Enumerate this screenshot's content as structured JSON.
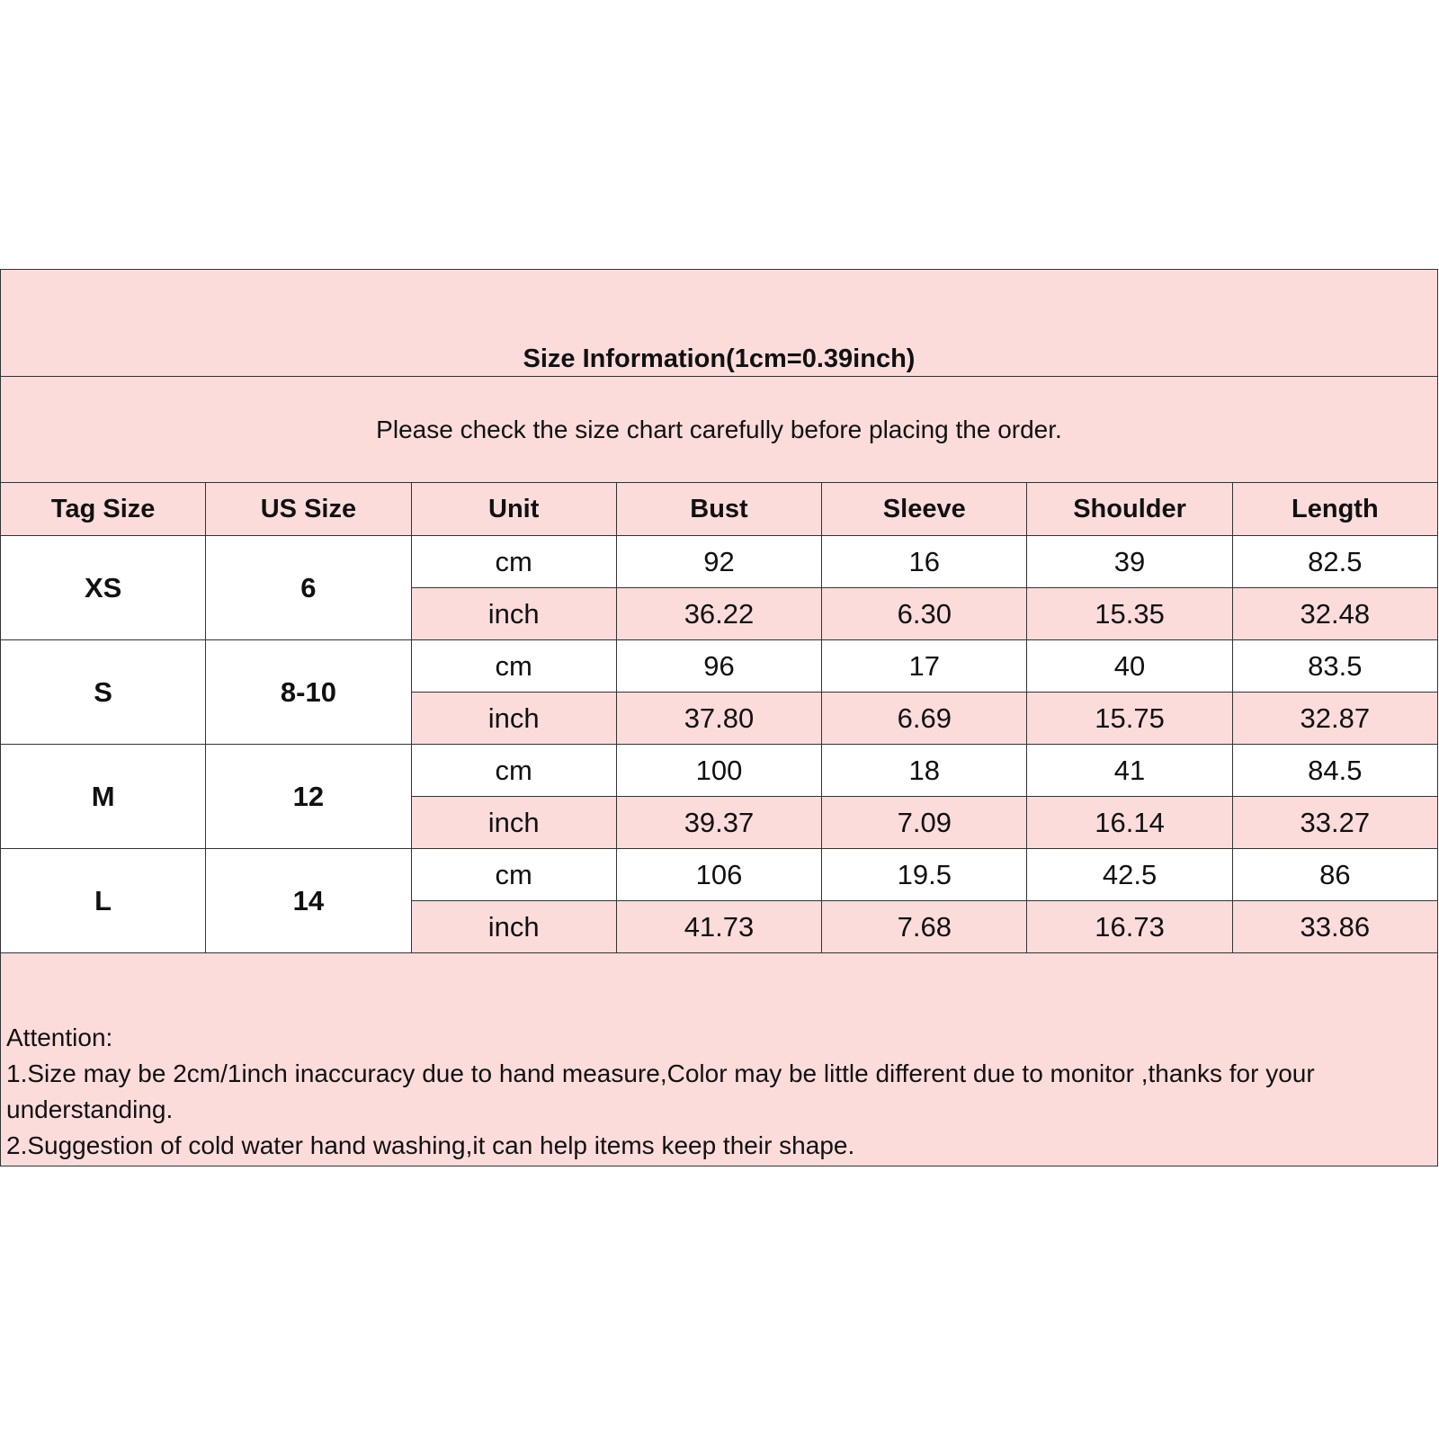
{
  "title": "Size Information(1cm=0.39inch)",
  "subtitle": "Please check the size chart carefully before placing the order.",
  "headers": [
    "Tag Size",
    "US Size",
    "Unit",
    "Bust",
    "Sleeve",
    "Shoulder",
    "Length"
  ],
  "colors": {
    "pink": "#fcdcdb",
    "border": "#333333"
  },
  "sizes": [
    {
      "tag": "XS",
      "us": "6",
      "cm": {
        "unit": "cm",
        "values": [
          "92",
          "16",
          "39",
          "82.5"
        ]
      },
      "inch": {
        "unit": "inch",
        "values": [
          "36.22",
          "6.30",
          "15.35",
          "32.48"
        ]
      }
    },
    {
      "tag": "S",
      "us": "8-10",
      "cm": {
        "unit": "cm",
        "values": [
          "96",
          "17",
          "40",
          "83.5"
        ]
      },
      "inch": {
        "unit": "inch",
        "values": [
          "37.80",
          "6.69",
          "15.75",
          "32.87"
        ]
      }
    },
    {
      "tag": "M",
      "us": "12",
      "cm": {
        "unit": "cm",
        "values": [
          "100",
          "18",
          "41",
          "84.5"
        ]
      },
      "inch": {
        "unit": "inch",
        "values": [
          "39.37",
          "7.09",
          "16.14",
          "33.27"
        ]
      }
    },
    {
      "tag": "L",
      "us": "14",
      "cm": {
        "unit": "cm",
        "values": [
          "106",
          "19.5",
          "42.5",
          "86"
        ]
      },
      "inch": {
        "unit": "inch",
        "values": [
          "41.73",
          "7.68",
          "16.73",
          "33.86"
        ]
      }
    }
  ],
  "notes": [
    "Attention:",
    "1.Size may be 2cm/1inch inaccuracy due to hand measure,Color may be little different due to monitor ,thanks for your understanding.",
    "2.Suggestion of cold water hand washing,it can help items keep their shape."
  ]
}
